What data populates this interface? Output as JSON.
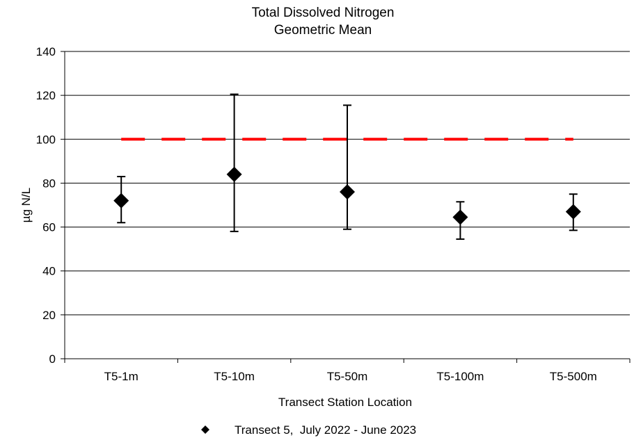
{
  "chart_data": {
    "type": "scatter",
    "title": [
      "Total Dissolved Nitrogen",
      "Geometric Mean"
    ],
    "xlabel": "Transect Station Location",
    "ylabel": "µg N/L",
    "ylim": [
      0,
      140
    ],
    "yticks": [
      0,
      20,
      40,
      60,
      80,
      100,
      120,
      140
    ],
    "categories": [
      "T5-1m",
      "T5-10m",
      "T5-50m",
      "T5-100m",
      "T5-500m"
    ],
    "series": [
      {
        "name": "Transect 5,  July 2022 - June 2023",
        "marker": "diamond",
        "color": "#000000",
        "values": [
          72,
          84,
          76,
          64.5,
          67
        ],
        "error_low": [
          62,
          58,
          59,
          54.5,
          58.5
        ],
        "error_high": [
          83,
          120.5,
          115.5,
          71.5,
          75
        ]
      }
    ],
    "reference_line": {
      "value": 100,
      "color": "#ff0000",
      "style": "dashed"
    },
    "grid": "horizontal",
    "legend_position": "bottom"
  }
}
